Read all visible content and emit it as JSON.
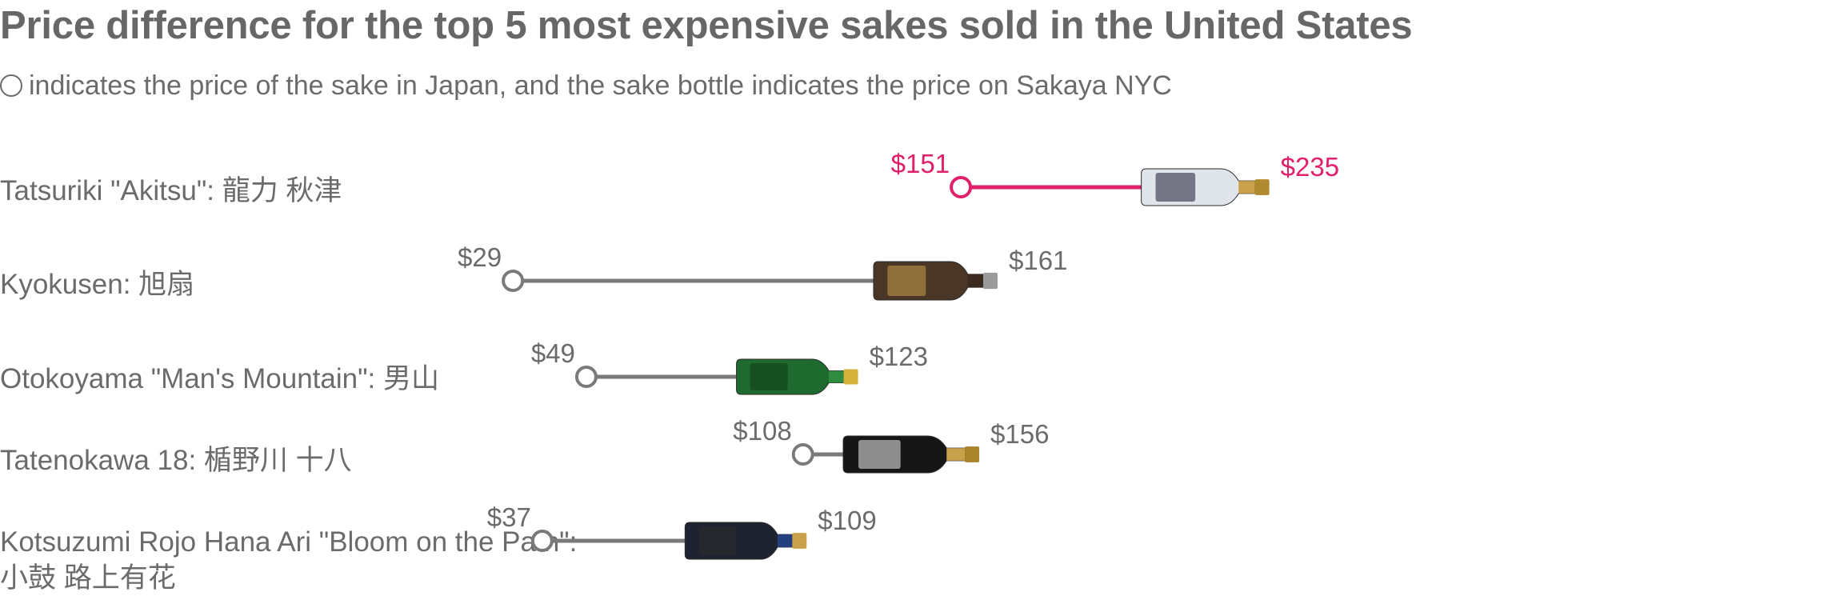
{
  "chart_data": {
    "type": "dumbbell",
    "title": "Price difference for the top 5 most expensive sakes sold in the United States",
    "subtitle": "indicates the price of the sake in Japan, and the sake bottle indicates the price on Sakaya NYC",
    "legend_marker": "◯",
    "series": [
      {
        "name": "price of the sake in Japan",
        "marker": "circle"
      },
      {
        "name": "price on Sakaya NYC",
        "marker": "sake-bottle"
      }
    ],
    "rows": [
      {
        "label": "Tatsuriki \"Akitsu\": 龍力 秋津",
        "label_lines": [
          "Tatsuriki \"Akitsu\": 龍力 秋津"
        ],
        "japan": 151,
        "nyc": 235,
        "japan_label": "$151",
        "nyc_label": "$235",
        "highlight": true,
        "bottle": "frosted"
      },
      {
        "label": "Kyokusen: 旭扇",
        "label_lines": [
          "Kyokusen: 旭扇"
        ],
        "japan": 29,
        "nyc": 161,
        "japan_label": "$29",
        "nyc_label": "$161",
        "highlight": false,
        "bottle": "brown"
      },
      {
        "label": "Otokoyama  \"Man's Mountain\": 男山",
        "label_lines": [
          "Otokoyama  \"Man's Mountain\": 男山"
        ],
        "japan": 49,
        "nyc": 123,
        "japan_label": "$49",
        "nyc_label": "$123",
        "highlight": false,
        "bottle": "green"
      },
      {
        "label": "Tatenokawa 18: 楯野川 十八",
        "label_lines": [
          "Tatenokawa 18: 楯野川 十八"
        ],
        "japan": 108,
        "nyc": 156,
        "japan_label": "$108",
        "nyc_label": "$156",
        "highlight": false,
        "bottle": "black-gold"
      },
      {
        "label": "Kotsuzumi Rojo Hana Ari \"Bloom on the Path\": 小鼓 路上有花",
        "label_lines": [
          "Kotsuzumi Rojo Hana Ari \"Bloom on the Path\":",
          "小鼓 路上有花"
        ],
        "japan": 37,
        "nyc": 109,
        "japan_label": "$37",
        "nyc_label": "$109",
        "highlight": false,
        "bottle": "navy"
      }
    ],
    "colors": {
      "highlight": "#e0206a",
      "default": "#7a7a7a",
      "text": "#6b6b6b"
    }
  }
}
